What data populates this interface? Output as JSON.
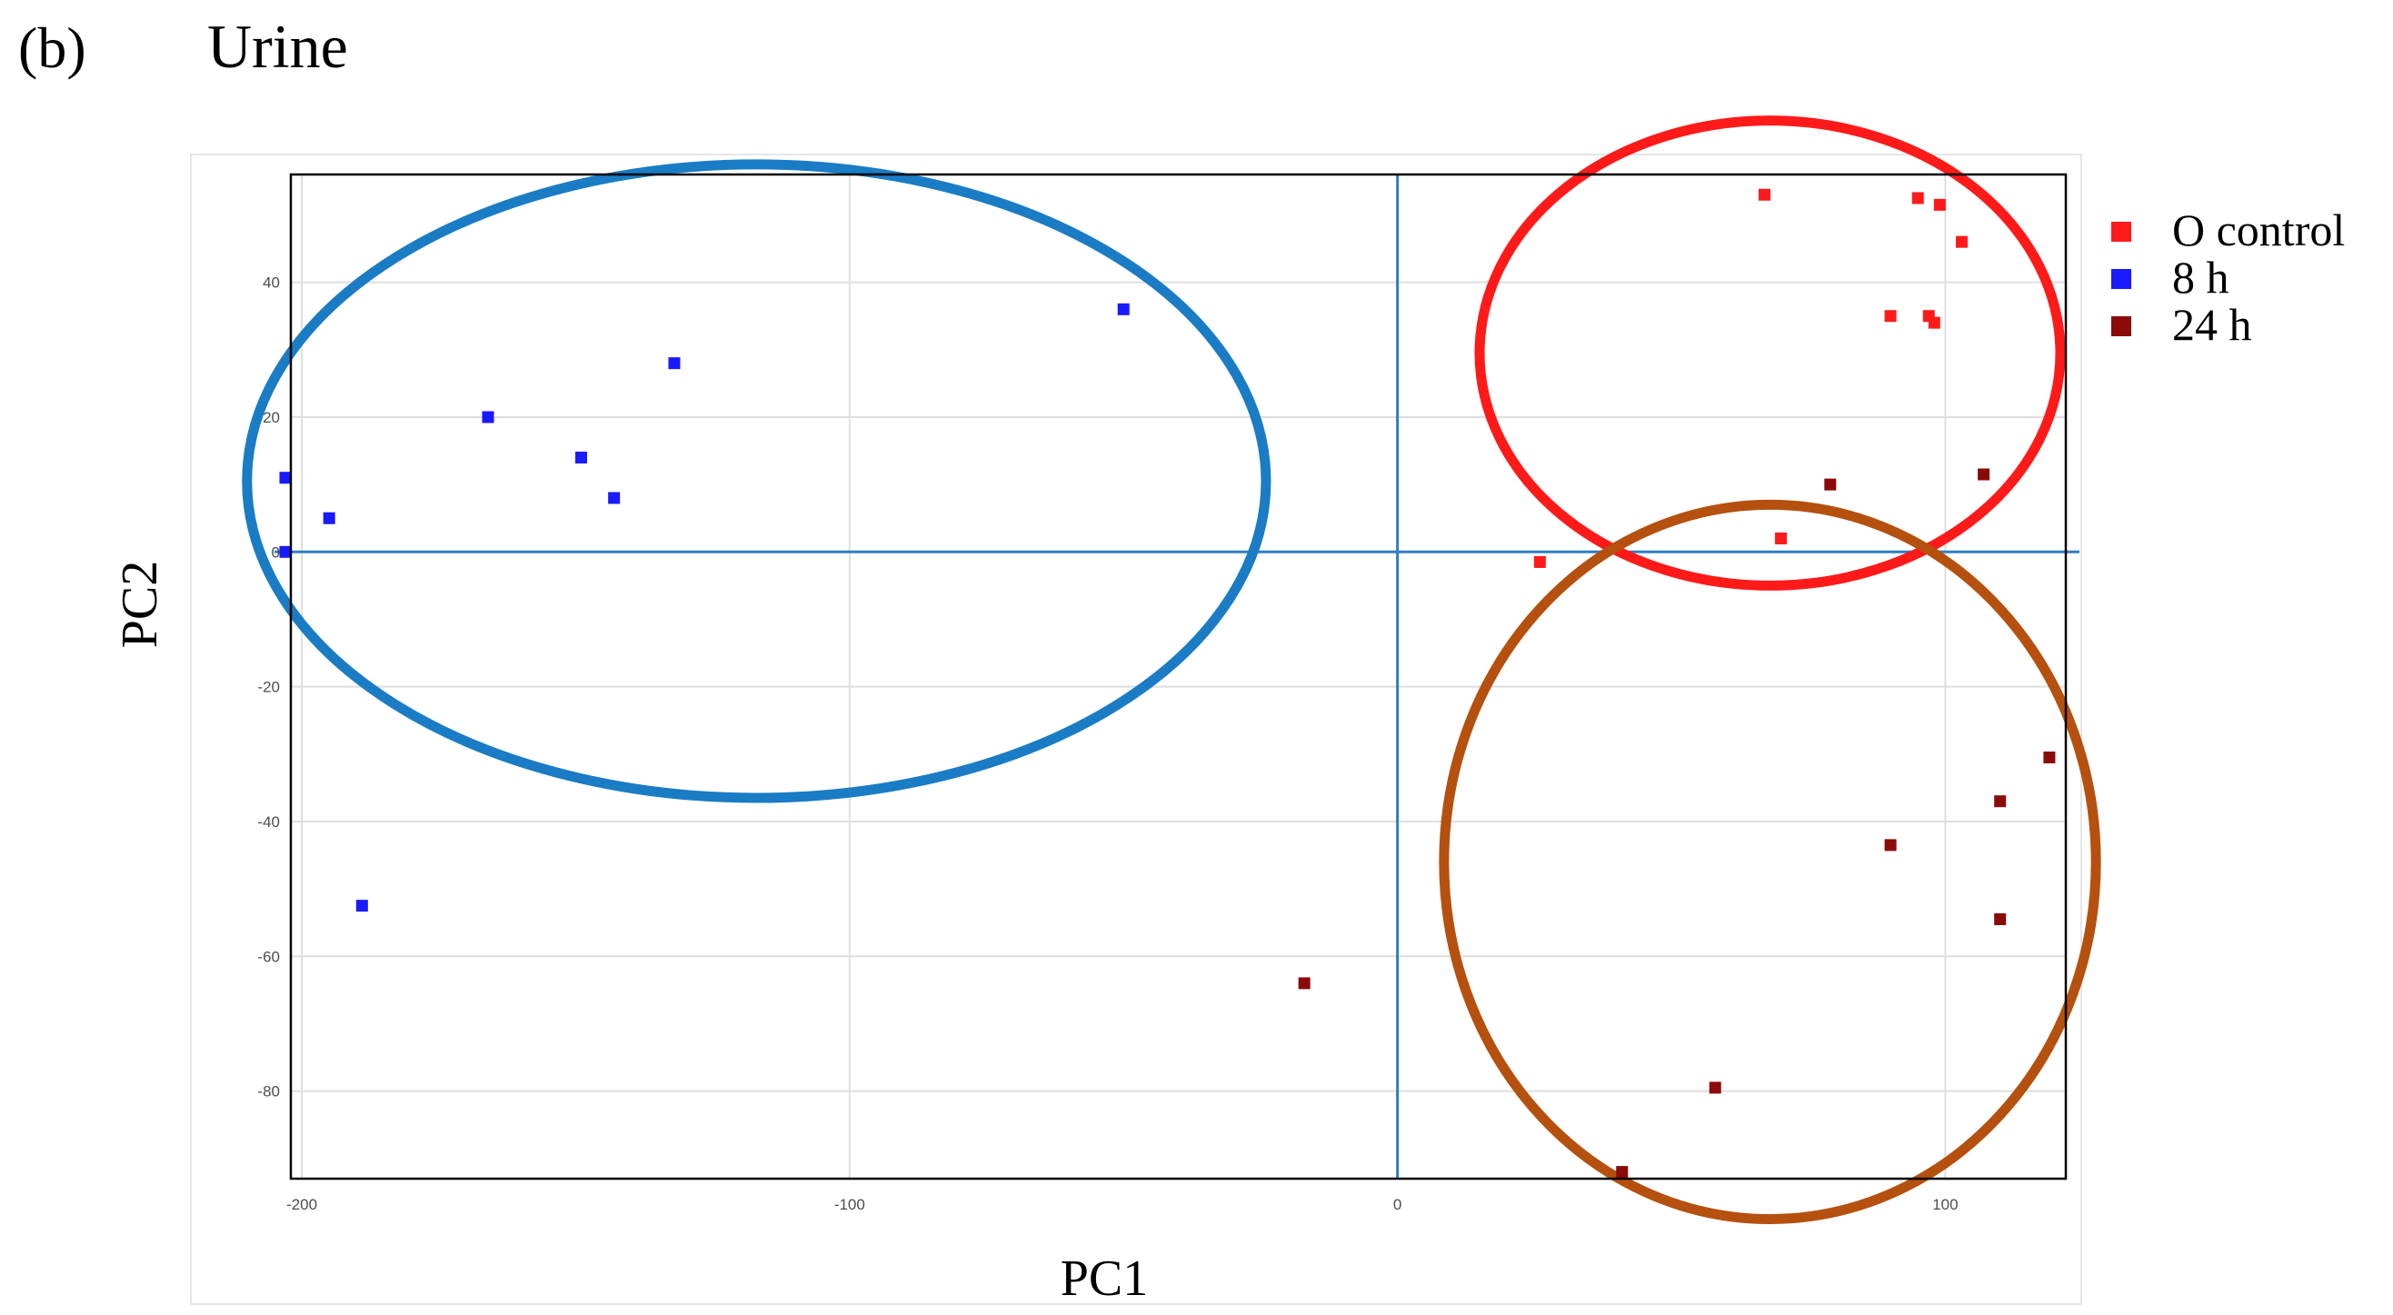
{
  "panel_label": "(b)",
  "title": "Urine",
  "colors": {
    "o_control": "#ff1a1a",
    "h8": "#1a1aff",
    "h24": "#8b0a0a",
    "ellipse_blue": "#1a7cc4",
    "ellipse_red": "#ff1a1a",
    "ellipse_brown": "#b5500f",
    "zero_lines": "#2e7fc1"
  },
  "chart_data": {
    "type": "scatter",
    "title": "Urine",
    "xlabel": "PC1",
    "ylabel": "PC2",
    "xlim": [
      -202,
      122
    ],
    "ylim": [
      -93,
      56
    ],
    "xticks": [
      -200,
      -100,
      0,
      100
    ],
    "yticks": [
      -80,
      -60,
      -40,
      -20,
      0,
      20,
      40
    ],
    "grid": true,
    "legend_position": "right",
    "series": [
      {
        "name": "O control",
        "color": "#ff1a1a",
        "x": [
          67,
          95,
          99,
          103,
          90,
          97,
          98,
          70,
          26
        ],
        "y": [
          53,
          52.5,
          51.5,
          46,
          35,
          35,
          34,
          2,
          -1.5
        ]
      },
      {
        "name": "8 h",
        "color": "#1a1aff",
        "x": [
          -50,
          -132,
          -166,
          -149,
          -143,
          -203,
          -195,
          -203,
          -189
        ],
        "y": [
          36,
          28,
          20,
          14,
          8,
          11,
          5,
          0,
          -52.5
        ]
      },
      {
        "name": "24 h",
        "color": "#8b0a0a",
        "x": [
          79,
          107,
          119,
          110,
          90,
          110,
          -17,
          58,
          41
        ],
        "y": [
          10,
          11.5,
          -30.5,
          -37,
          -43.5,
          -54.5,
          -64,
          -79.5,
          -92
        ]
      }
    ],
    "zero_lines": {
      "x": 0,
      "y": 0
    },
    "ellipses": [
      {
        "group": "8 h",
        "cx": -117,
        "cy": 10.5,
        "rx": 93,
        "ry": 47
      },
      {
        "group": "O control",
        "cx": 68,
        "cy": 29.5,
        "rx": 53,
        "ry": 34.5
      },
      {
        "group": "24 h",
        "cx": 68,
        "cy": -46,
        "rx": 59.5,
        "ry": 53
      }
    ]
  }
}
